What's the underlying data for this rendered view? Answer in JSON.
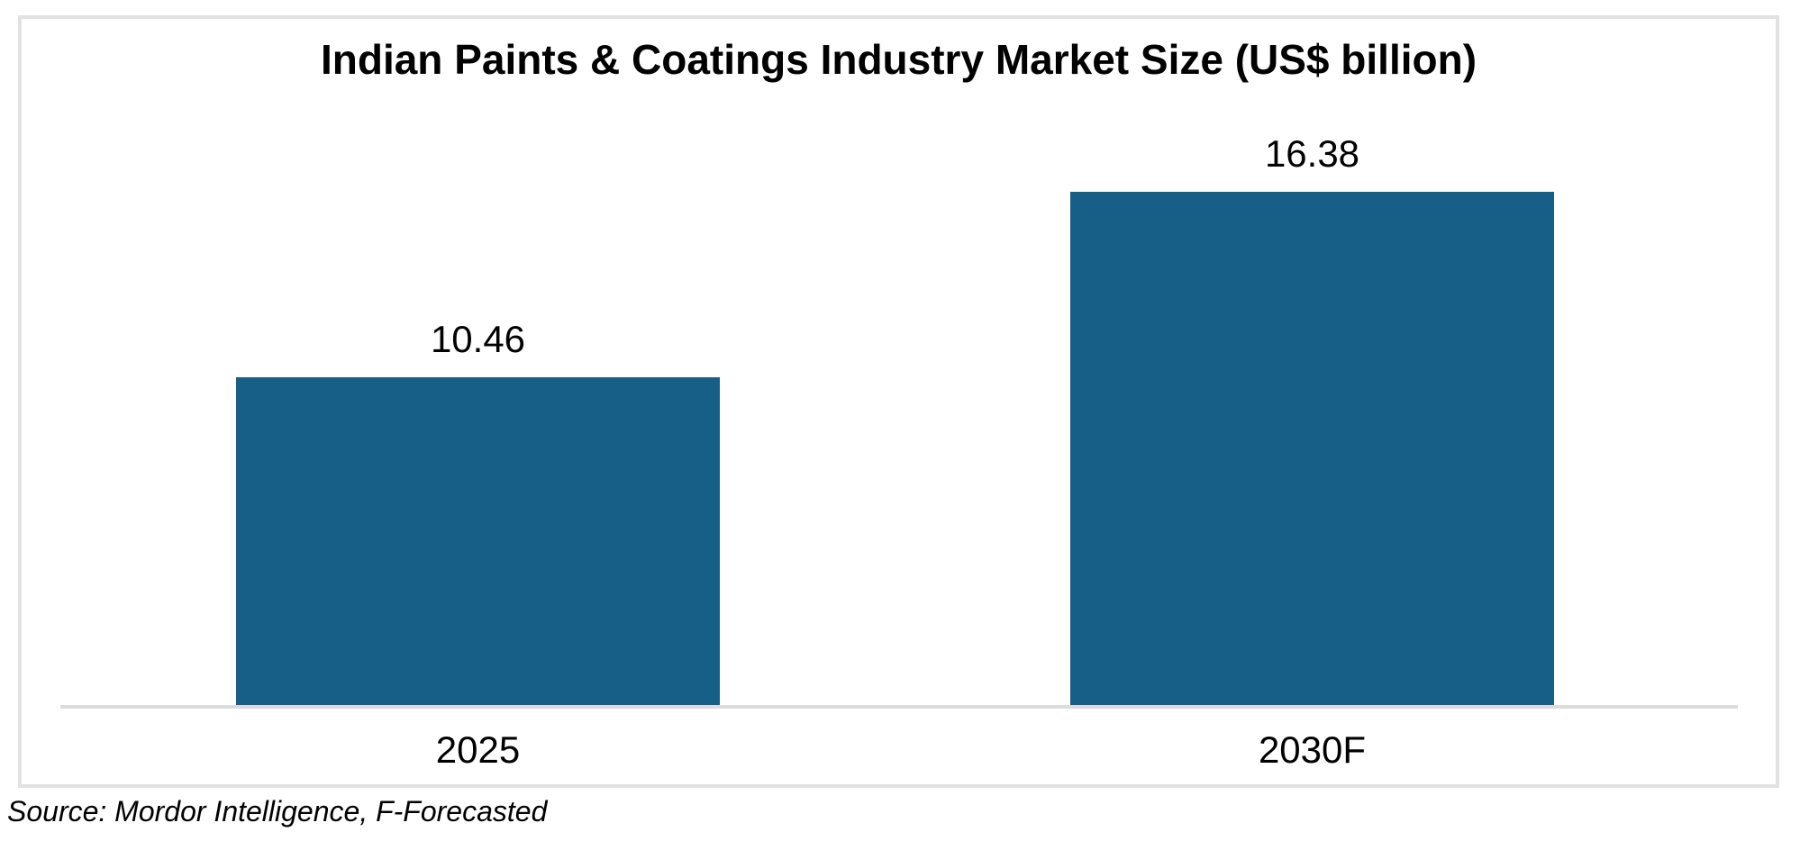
{
  "chart_data": {
    "type": "bar",
    "title": "Indian Paints & Coatings Industry Market Size (US$ billion)",
    "categories": [
      "2025",
      "2030F"
    ],
    "values": [
      10.46,
      16.38
    ],
    "value_labels": [
      "10.46",
      "16.38"
    ],
    "series": [
      {
        "name": "Market Size (US$ billion)",
        "values": [
          10.46,
          16.38
        ]
      }
    ],
    "xlabel": "",
    "ylabel": "",
    "ylim": [
      0,
      17.5
    ],
    "grid": false,
    "legend": false,
    "bar_color": "#175F86",
    "axis_line_color": "#DCDCDC",
    "frame_border_color": "#E2E2E2",
    "source": "Source: Mordor Intelligence, F-Forecasted"
  }
}
